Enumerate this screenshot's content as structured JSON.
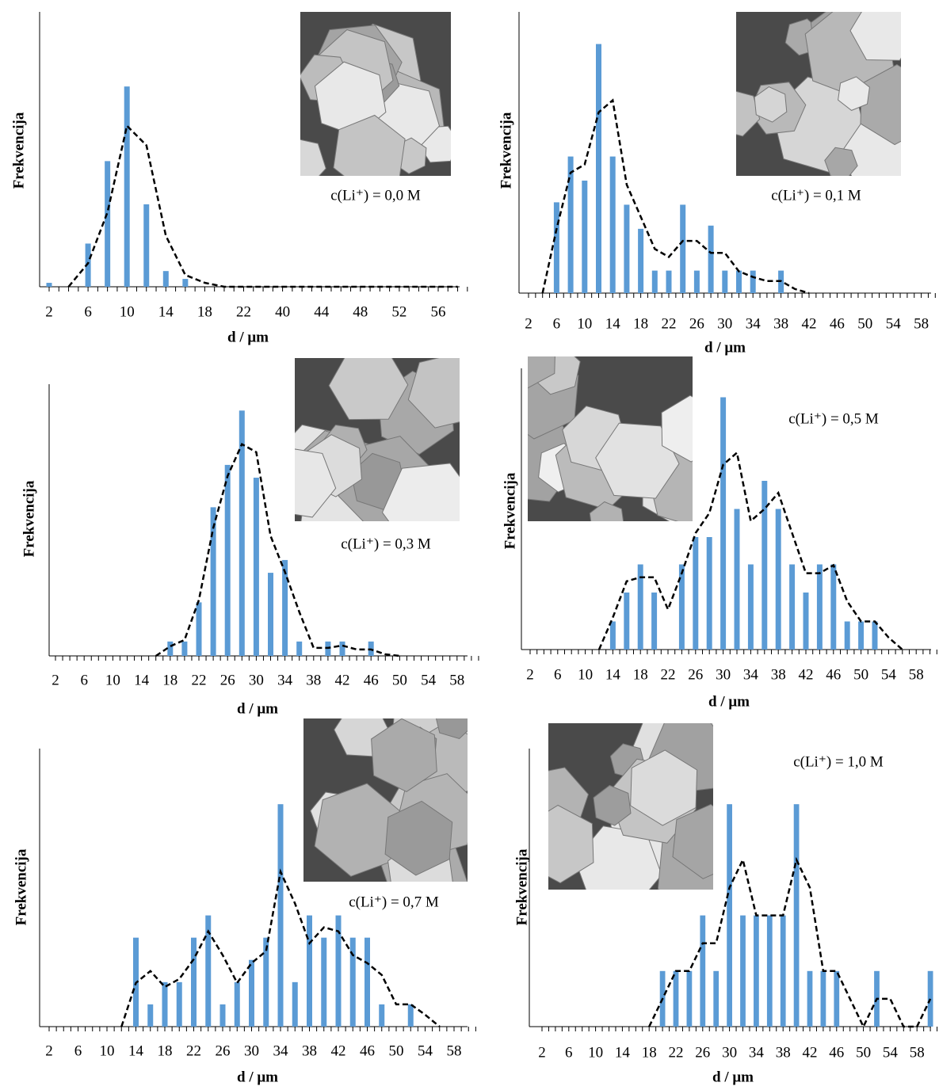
{
  "chart_data": [
    {
      "type": "bar",
      "x_label": "d / μm",
      "y_label": "Frekvencija",
      "annotation": "c(Li⁺) = 0,0 M",
      "categories": [
        "2",
        null,
        "6",
        null,
        "10",
        null,
        "14",
        null,
        "18",
        null,
        "22",
        null,
        "40",
        null,
        "44",
        null,
        "48",
        null,
        "52",
        null,
        "56",
        null
      ],
      "values": [
        0.5,
        0,
        5.5,
        16,
        25.5,
        10.5,
        2,
        1,
        0,
        0,
        0,
        0,
        0,
        0,
        0,
        0,
        0,
        0,
        0,
        0,
        0,
        0
      ],
      "line_values": [
        null,
        0,
        3,
        9.5,
        20.5,
        18,
        6.5,
        1.5,
        0.5,
        0,
        0,
        0,
        0,
        0,
        0,
        0,
        0,
        0,
        0,
        0,
        0,
        0
      ],
      "color": "#5b9bd5",
      "line_color": "#000000",
      "line_dashed": true,
      "ylim": [
        0,
        35
      ]
    },
    {
      "type": "bar",
      "x_label": "d / μm",
      "y_label": "Frekvencija",
      "annotation": "c(Li⁺) = 0,1 M",
      "categories": [
        "2",
        null,
        "6",
        null,
        "10",
        null,
        "14",
        null,
        "18",
        null,
        "22",
        null,
        "26",
        null,
        "30",
        null,
        "34",
        null,
        "38",
        null,
        "42",
        null,
        "46",
        null,
        "50",
        null,
        "54",
        null,
        "58",
        null
      ],
      "values": [
        0,
        0,
        11.3,
        17,
        14,
        31,
        17,
        11,
        8,
        2.8,
        2.8,
        11,
        2.8,
        8.4,
        2.8,
        2.8,
        2.8,
        0,
        2.8,
        0,
        0,
        0,
        0,
        0,
        0,
        0,
        0,
        0,
        0,
        0
      ],
      "line_values": [
        null,
        0,
        8,
        15,
        16,
        22.5,
        24,
        13.5,
        9.5,
        5.5,
        4.5,
        6.5,
        6.5,
        5,
        5,
        2.7,
        2,
        1.5,
        1.5,
        0.5,
        0,
        null,
        null,
        null,
        null,
        null,
        null,
        null,
        null,
        null
      ],
      "color": "#5b9bd5",
      "line_color": "#000000",
      "line_dashed": true,
      "ylim": [
        0,
        35
      ]
    },
    {
      "type": "bar",
      "x_label": "d / μm",
      "y_label": "Frekvencija",
      "annotation": "c(Li⁺) = 0,3 M",
      "categories": [
        "2",
        null,
        "6",
        null,
        "10",
        null,
        "14",
        null,
        "18",
        null,
        "22",
        null,
        "26",
        null,
        "30",
        null,
        "34",
        null,
        "38",
        null,
        "42",
        null,
        "46",
        null,
        "50",
        null,
        "54",
        null,
        "58",
        null
      ],
      "values": [
        0,
        0,
        0,
        0,
        0,
        0,
        0,
        0,
        1.8,
        1.8,
        6.7,
        18.6,
        23.9,
        30.7,
        22.3,
        10.4,
        12,
        1.8,
        0,
        1.8,
        1.8,
        0,
        1.8,
        0,
        0,
        0,
        0,
        0,
        0,
        0
      ],
      "line_values": [
        null,
        null,
        null,
        null,
        null,
        null,
        null,
        0,
        1.2,
        2,
        7,
        16,
        22.5,
        26.5,
        25.5,
        15,
        10.5,
        5.5,
        1,
        1,
        1.3,
        0.8,
        0.8,
        0.2,
        0,
        null,
        null,
        null,
        null,
        null
      ],
      "color": "#5b9bd5",
      "line_color": "#000000",
      "line_dashed": true,
      "ylim": [
        0,
        34
      ]
    },
    {
      "type": "bar",
      "x_label": "d / μm",
      "y_label": "Frekvencija",
      "annotation": "c(Li⁺) = 0,5 M",
      "categories": [
        "2",
        null,
        "6",
        null,
        "10",
        null,
        "14",
        null,
        "18",
        null,
        "22",
        null,
        "26",
        null,
        "30",
        null,
        "34",
        null,
        "38",
        null,
        "42",
        null,
        "46",
        null,
        "50",
        null,
        "54",
        null,
        "58",
        null
      ],
      "values": [
        0,
        0,
        0,
        0,
        0,
        0,
        3.5,
        7.1,
        10.6,
        7.1,
        0,
        10.6,
        14,
        14,
        31.4,
        17.5,
        10.6,
        21,
        17.5,
        10.6,
        7.1,
        10.6,
        10.6,
        3.5,
        3.5,
        3.5,
        0,
        0,
        0,
        0
      ],
      "line_values": [
        null,
        null,
        null,
        null,
        null,
        0,
        4,
        8.5,
        9,
        9,
        5,
        9.5,
        14.5,
        17,
        23,
        24.5,
        16,
        17.5,
        19.5,
        14.5,
        9.5,
        9.5,
        10.5,
        6,
        3.5,
        3.5,
        1.5,
        0,
        null,
        null
      ],
      "color": "#5b9bd5",
      "line_color": "#000000",
      "line_dashed": true,
      "ylim": [
        0,
        35
      ]
    },
    {
      "type": "bar",
      "x_label": "d / μm",
      "y_label": "Frekvencija",
      "annotation": "c(Li⁺) = 0,7 M",
      "categories": [
        "2",
        null,
        "6",
        null,
        "10",
        null,
        "14",
        null,
        "18",
        null,
        "22",
        null,
        "26",
        null,
        "30",
        null,
        "34",
        null,
        "38",
        null,
        "42",
        null,
        "46",
        null,
        "50",
        null,
        "54",
        null,
        "58",
        null
      ],
      "values": [
        0,
        0,
        0,
        0,
        0,
        0,
        11.2,
        2.8,
        5.6,
        5.6,
        11.2,
        14,
        2.8,
        5.6,
        8.4,
        11.2,
        28,
        5.6,
        14,
        11.2,
        14,
        11.2,
        11.2,
        2.8,
        0,
        2.8,
        0,
        0,
        0,
        0
      ],
      "line_values": [
        null,
        null,
        null,
        null,
        null,
        0,
        5.5,
        7,
        5,
        6,
        8.5,
        12,
        9,
        5.5,
        8,
        9.5,
        19.5,
        15.5,
        10.5,
        12.5,
        12,
        9,
        8,
        6.5,
        2.8,
        2.8,
        1.5,
        0,
        null,
        null
      ],
      "color": "#5b9bd5",
      "line_color": "#000000",
      "line_dashed": true,
      "ylim": [
        0,
        35
      ]
    },
    {
      "type": "bar",
      "x_label": "d / μm",
      "y_label": "Frekvencija",
      "annotation": "c(Li⁺) = 1,0 M",
      "categories": [
        "2",
        null,
        "6",
        null,
        "10",
        null,
        "14",
        null,
        "18",
        null,
        "22",
        null,
        "26",
        null,
        "30",
        null,
        "34",
        null,
        "38",
        null,
        "42",
        null,
        "46",
        null,
        "50",
        null,
        "54",
        null,
        "58",
        null
      ],
      "values": [
        0,
        0,
        0,
        0,
        0,
        0,
        0,
        0,
        0,
        7,
        7,
        7,
        14,
        7,
        28,
        14,
        14,
        14,
        14,
        28,
        7,
        7,
        7,
        0,
        0,
        7,
        0,
        0,
        0,
        7
      ],
      "line_values": [
        null,
        null,
        null,
        null,
        null,
        null,
        null,
        null,
        0,
        3.5,
        7,
        7,
        10.5,
        10.5,
        17.5,
        21,
        14,
        14,
        14,
        21,
        17.5,
        7,
        7,
        3.5,
        0,
        3.5,
        3.5,
        0,
        0,
        3.5
      ],
      "color": "#5b9bd5",
      "line_color": "#000000",
      "line_dashed": true,
      "ylim": [
        0,
        35
      ]
    }
  ]
}
